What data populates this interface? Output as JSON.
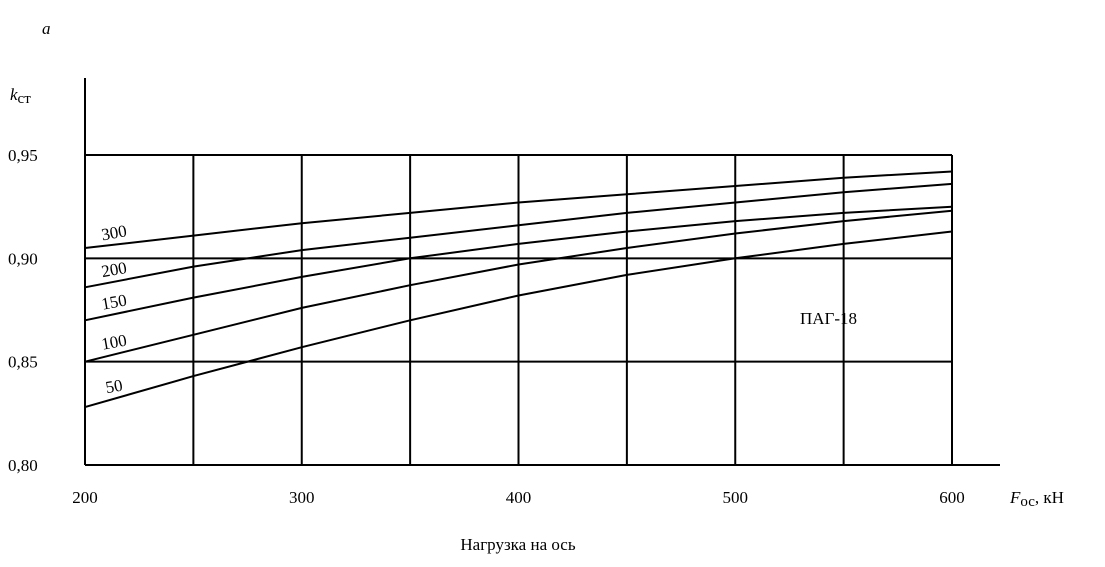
{
  "chart_data": {
    "type": "line",
    "panel_label": "a",
    "ylabel": [
      "k",
      "ст"
    ],
    "xlabel": [
      "F",
      "ос",
      ", кН"
    ],
    "xtitle": "Нагрузка на ось",
    "annotation": "ПАГ-18",
    "x": [
      200,
      250,
      300,
      350,
      400,
      450,
      500,
      550,
      600
    ],
    "series": [
      {
        "name": "300",
        "color": "#000000",
        "values": [
          0.905,
          0.911,
          0.917,
          0.922,
          0.927,
          0.931,
          0.935,
          0.939,
          0.942
        ]
      },
      {
        "name": "200",
        "color": "#000000",
        "values": [
          0.886,
          0.896,
          0.904,
          0.91,
          0.916,
          0.922,
          0.927,
          0.932,
          0.936
        ]
      },
      {
        "name": "150",
        "color": "#000000",
        "values": [
          0.87,
          0.881,
          0.891,
          0.9,
          0.907,
          0.913,
          0.918,
          0.922,
          0.925
        ]
      },
      {
        "name": "100",
        "color": "#000000",
        "values": [
          0.85,
          0.863,
          0.876,
          0.887,
          0.897,
          0.905,
          0.912,
          0.918,
          0.923
        ]
      },
      {
        "name": "50",
        "color": "#000000",
        "values": [
          0.828,
          0.843,
          0.857,
          0.87,
          0.882,
          0.892,
          0.9,
          0.907,
          0.913
        ]
      }
    ],
    "xlim": [
      200,
      600
    ],
    "ylim": [
      0.8,
      0.95
    ],
    "xticks": [
      200,
      300,
      400,
      500,
      600
    ],
    "xgrid": [
      250,
      300,
      350,
      400,
      450,
      500,
      550,
      600
    ],
    "yticks": [
      {
        "value": 0.8,
        "label": "0,80"
      },
      {
        "value": 0.85,
        "label": "0,85"
      },
      {
        "value": 0.9,
        "label": "0,90"
      },
      {
        "value": 0.95,
        "label": "0,95"
      }
    ],
    "grid": true
  }
}
